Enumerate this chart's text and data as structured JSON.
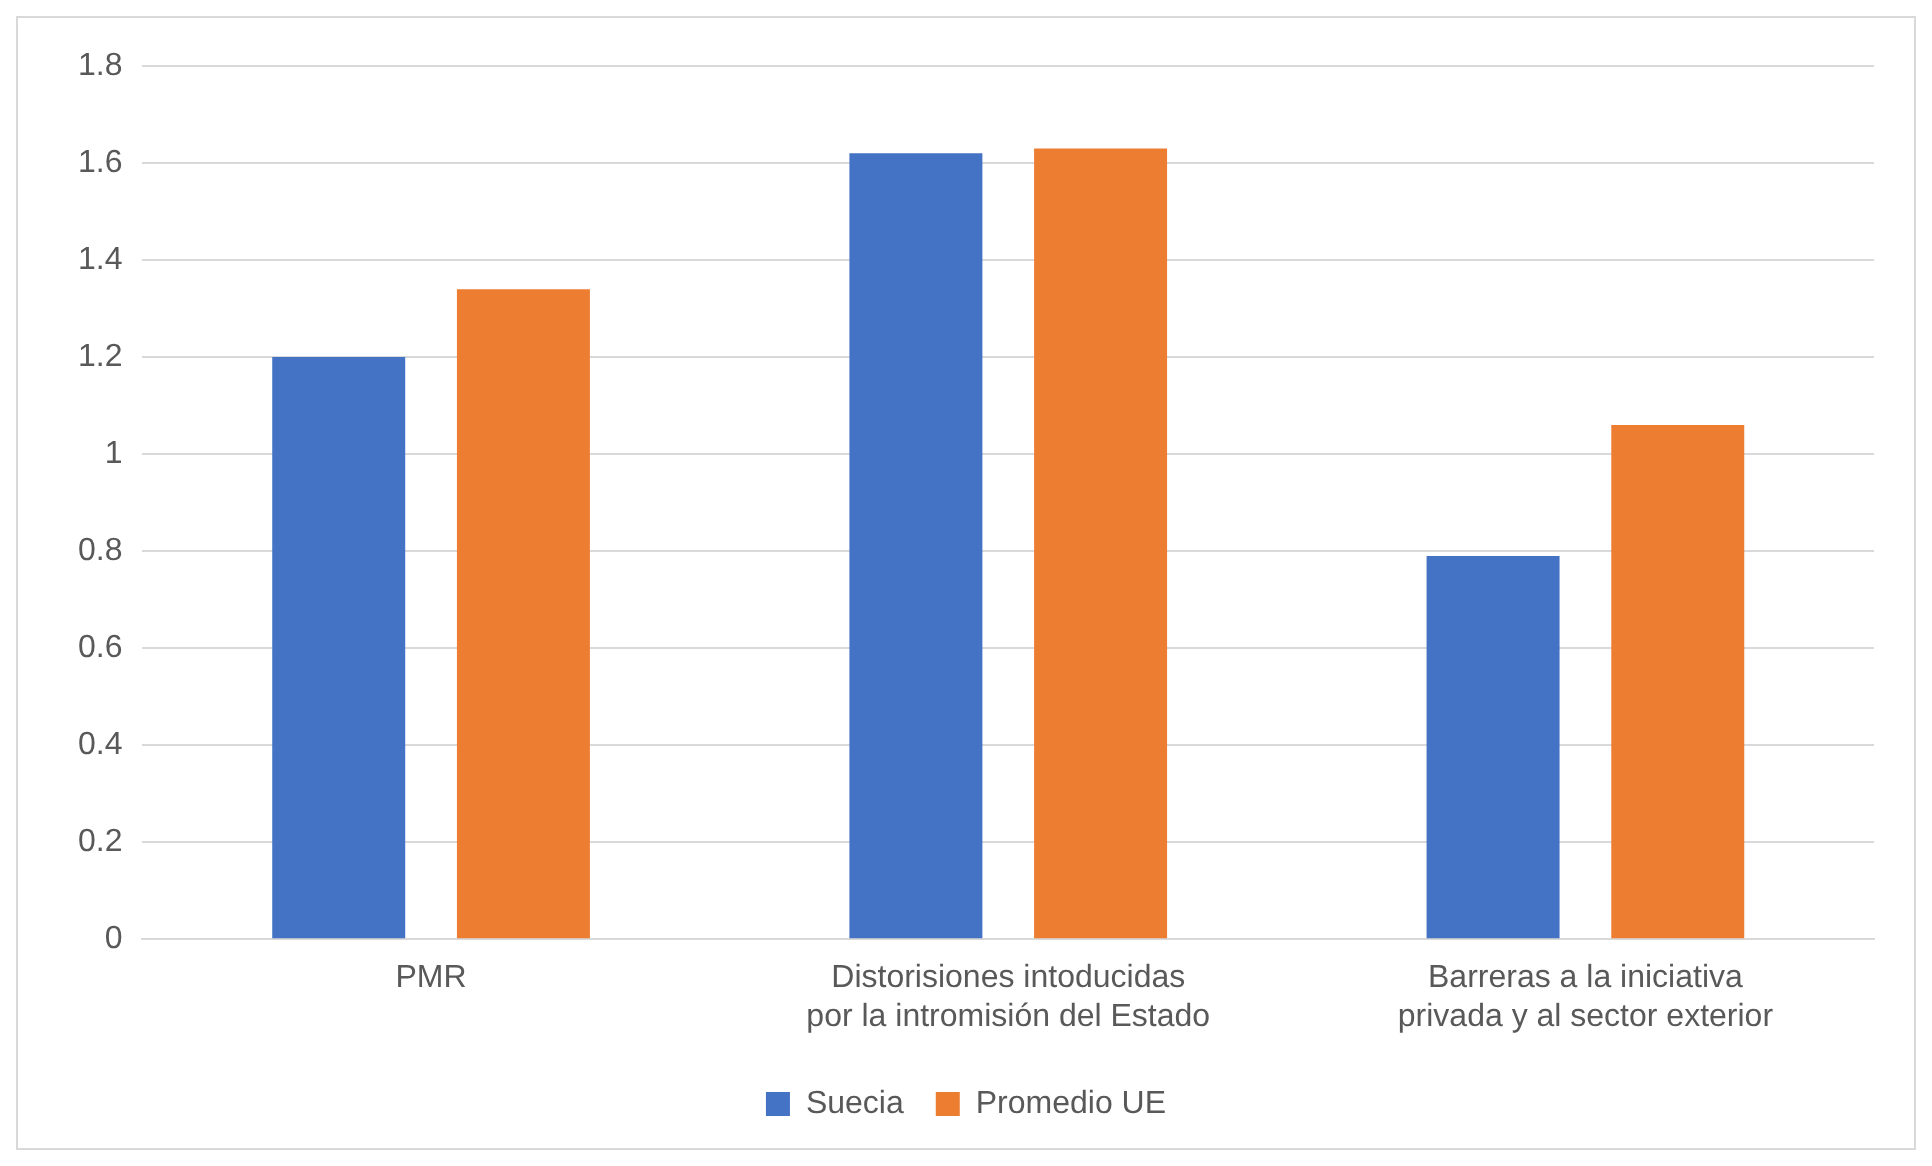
{
  "chart_data": {
    "type": "bar",
    "categories": [
      "PMR",
      "Distorisiones intoducidas por la intromisión del Estado",
      "Barreras a la iniciativa privada y al sector exterior"
    ],
    "series": [
      {
        "name": "Suecia",
        "color": "#4472c4",
        "values": [
          1.2,
          1.62,
          0.79
        ]
      },
      {
        "name": "Promedio UE",
        "color": "#ed7d31",
        "values": [
          1.34,
          1.63,
          1.06
        ]
      }
    ],
    "ylim": [
      0,
      1.8
    ],
    "yticks": [
      0,
      0.2,
      0.4,
      0.6,
      0.8,
      1,
      1.2,
      1.4,
      1.6,
      1.8
    ],
    "grid": "y",
    "legend": "bottom"
  }
}
